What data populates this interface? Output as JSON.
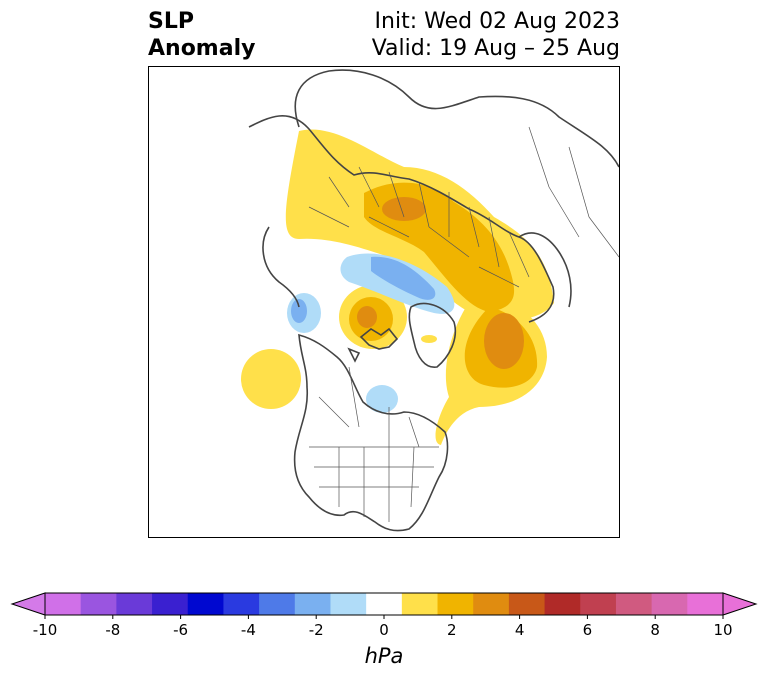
{
  "header": {
    "title_line1": "SLP",
    "title_line2": "Anomaly",
    "init_label": "Init: Wed 02 Aug 2023",
    "valid_label": "Valid: 19 Aug – 25 Aug"
  },
  "colorbar": {
    "unit": "hPa",
    "ticks": [
      "-10",
      "-8",
      "-6",
      "-4",
      "-2",
      "0",
      "2",
      "4",
      "6",
      "8",
      "10"
    ],
    "colors": [
      "#d070e8",
      "#9a55e0",
      "#6a3ad8",
      "#3a20d0",
      "#0008d0",
      "#2a3ae0",
      "#4e7ae8",
      "#7ab0f0",
      "#b0dcf8",
      "#ffffff",
      "#ffe04a",
      "#f0b400",
      "#e08c10",
      "#c85818",
      "#b02a28",
      "#c04050",
      "#d05a80",
      "#d868b0",
      "#e870d8"
    ],
    "under_color": "#d47ae8",
    "over_color": "#e870d8"
  },
  "map": {
    "anomaly_colors": {
      "light_blue": "#b0dcf8",
      "blue": "#7ab0f0",
      "yellow": "#ffe04a",
      "gold": "#f0b400",
      "orange": "#e08c10"
    }
  }
}
